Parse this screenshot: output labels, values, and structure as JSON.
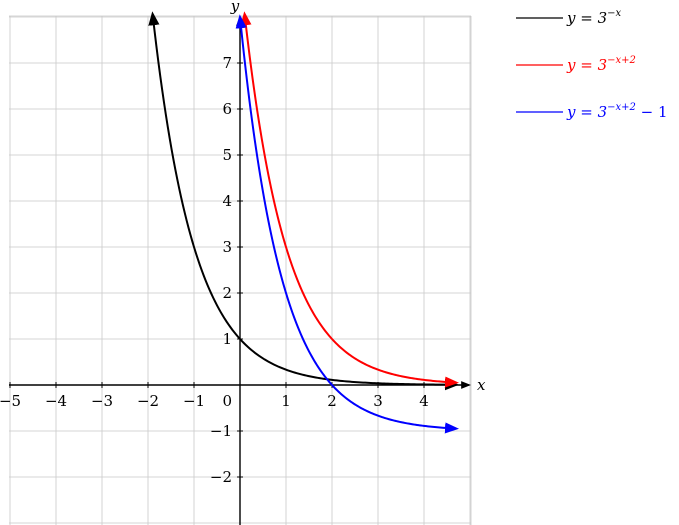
{
  "chart_data": {
    "type": "line",
    "xlabel": "x",
    "ylabel": "y",
    "xlim": [
      -5,
      5
    ],
    "ylim": [
      -3,
      8
    ],
    "grid": true,
    "x_ticks": [
      "−5",
      "−4",
      "−3",
      "−2",
      "−1",
      "1",
      "2",
      "3",
      "4"
    ],
    "y_ticks": [
      "−2",
      "−1",
      "1",
      "2",
      "3",
      "4",
      "5",
      "6",
      "7"
    ],
    "origin_label": "0",
    "legend_position": "top-right",
    "series": [
      {
        "name": "y = 3^−x",
        "legend": {
          "prefix": "y = 3",
          "sup": "−x",
          "suffix": ""
        },
        "color": "#000000",
        "function": "3^(-x)",
        "x": [
          -1.9,
          -1.5,
          -1,
          -0.5,
          0,
          0.5,
          1,
          1.5,
          2,
          2.5,
          3,
          3.5,
          4,
          4.7
        ],
        "y": [
          8.06,
          5.2,
          3,
          1.73,
          1,
          0.58,
          0.33,
          0.19,
          0.11,
          0.06,
          0.04,
          0.02,
          0.01,
          0.01
        ]
      },
      {
        "name": "y = 3^(−x+2)",
        "legend": {
          "prefix": "y = 3",
          "sup": "−x+2",
          "suffix": ""
        },
        "color": "#ff0000",
        "function": "3^(-x+2)",
        "x": [
          0.1,
          0.5,
          1,
          1.5,
          2,
          2.5,
          3,
          3.5,
          4,
          4.7
        ],
        "y": [
          8.06,
          5.2,
          3,
          1.73,
          1,
          0.58,
          0.33,
          0.19,
          0.11,
          0.05
        ]
      },
      {
        "name": "y = 3^(−x+2) − 1",
        "legend": {
          "prefix": "y = 3",
          "sup": "−x+2",
          "suffix": " − 1"
        },
        "color": "#0000ff",
        "function": "3^(-x+2)-1",
        "x": [
          0,
          0.5,
          1,
          1.5,
          2,
          2.5,
          3,
          3.5,
          4,
          4.7
        ],
        "y": [
          8,
          4.2,
          2,
          0.73,
          0,
          -0.42,
          -0.67,
          -0.81,
          -0.89,
          -0.95
        ]
      }
    ]
  }
}
